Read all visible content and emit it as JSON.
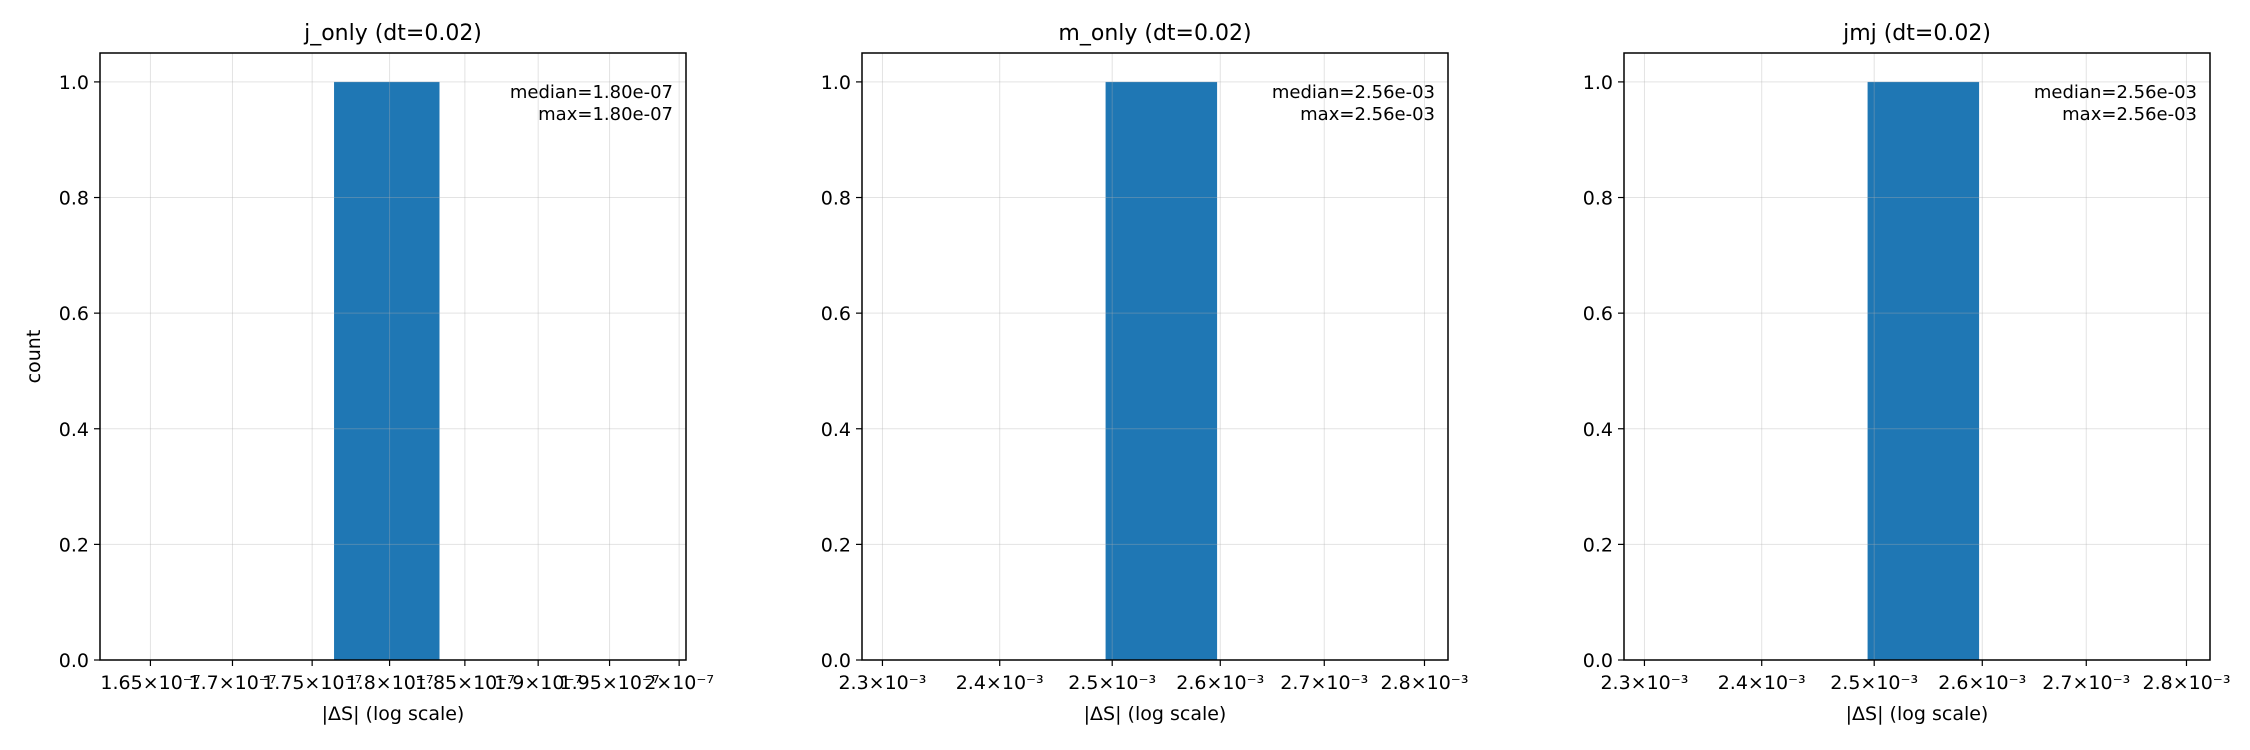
{
  "chart_data": [
    {
      "type": "bar",
      "title": "j_only (dt=0.02)",
      "xlabel": "|ΔS| (log scale)",
      "ylabel": "count",
      "xscale": "log",
      "xlim": [
        1.62e-07,
        2.005e-07
      ],
      "ylim": [
        0,
        1.05
      ],
      "grid": true,
      "xticks": [
        {
          "value": 1.65e-07,
          "label": "1.65×10⁻⁷"
        },
        {
          "value": 1.7e-07,
          "label": "1.7×10⁻⁷"
        },
        {
          "value": 1.75e-07,
          "label": "1.75×10⁻⁷"
        },
        {
          "value": 1.8e-07,
          "label": "1.8×10⁻⁷"
        },
        {
          "value": 1.85e-07,
          "label": "1.85×10⁻⁷"
        },
        {
          "value": 1.9e-07,
          "label": "1.9×10⁻⁷"
        },
        {
          "value": 1.95e-07,
          "label": "1.95×10⁻⁷"
        },
        {
          "value": 2e-07,
          "label": "2×10⁻⁷"
        }
      ],
      "yticks": [
        "0.0",
        "0.2",
        "0.4",
        "0.6",
        "0.8",
        "1.0"
      ],
      "bars": [
        {
          "x0": 1.764e-07,
          "x1": 1.833e-07,
          "value": 1
        }
      ],
      "annotation": [
        "median=1.80e-07",
        "max=1.80e-07"
      ],
      "bar_color": "#1f77b4"
    },
    {
      "type": "bar",
      "title": "m_only (dt=0.02)",
      "xlabel": "|ΔS| (log scale)",
      "ylabel": "",
      "xscale": "log",
      "xlim": [
        0.002283,
        0.002824
      ],
      "ylim": [
        0,
        1.05
      ],
      "grid": true,
      "xticks": [
        {
          "value": 0.0023,
          "label": "2.3×10⁻³"
        },
        {
          "value": 0.0024,
          "label": "2.4×10⁻³"
        },
        {
          "value": 0.0025,
          "label": "2.5×10⁻³"
        },
        {
          "value": 0.0026,
          "label": "2.6×10⁻³"
        },
        {
          "value": 0.0027,
          "label": "2.7×10⁻³"
        },
        {
          "value": 0.0028,
          "label": "2.8×10⁻³"
        }
      ],
      "yticks": [
        "0.0",
        "0.2",
        "0.4",
        "0.6",
        "0.8",
        "1.0"
      ],
      "bars": [
        {
          "x0": 0.002494,
          "x1": 0.002597,
          "value": 1
        }
      ],
      "annotation": [
        "median=2.56e-03",
        "max=2.56e-03"
      ],
      "bar_color": "#1f77b4"
    },
    {
      "type": "bar",
      "title": "jmj (dt=0.02)",
      "xlabel": "|ΔS| (log scale)",
      "ylabel": "",
      "xscale": "log",
      "xlim": [
        0.002283,
        0.002824
      ],
      "ylim": [
        0,
        1.05
      ],
      "grid": true,
      "xticks": [
        {
          "value": 0.0023,
          "label": "2.3×10⁻³"
        },
        {
          "value": 0.0024,
          "label": "2.4×10⁻³"
        },
        {
          "value": 0.0025,
          "label": "2.5×10⁻³"
        },
        {
          "value": 0.0026,
          "label": "2.6×10⁻³"
        },
        {
          "value": 0.0027,
          "label": "2.7×10⁻³"
        },
        {
          "value": 0.0028,
          "label": "2.8×10⁻³"
        }
      ],
      "yticks": [
        "0.0",
        "0.2",
        "0.4",
        "0.6",
        "0.8",
        "1.0"
      ],
      "bars": [
        {
          "x0": 0.002494,
          "x1": 0.002597,
          "value": 1
        }
      ],
      "annotation": [
        "median=2.56e-03",
        "max=2.56e-03"
      ],
      "bar_color": "#1f77b4"
    }
  ]
}
